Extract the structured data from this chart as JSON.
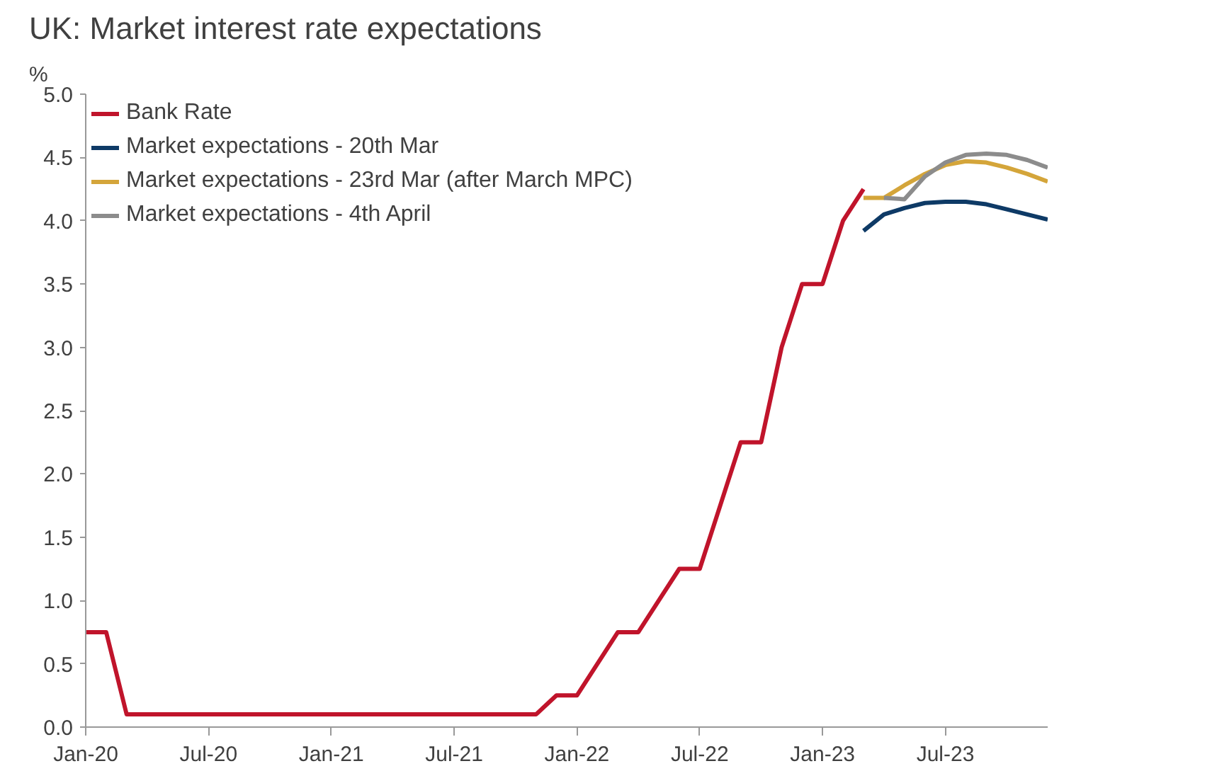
{
  "chart_data": {
    "type": "line",
    "title": "UK: Market interest rate expectations",
    "ylabel": "%",
    "xlim": [
      "2020-01",
      "2023-12"
    ],
    "ylim": [
      0,
      5
    ],
    "xticks": [
      {
        "value": "2020-01",
        "label": "Jan-20"
      },
      {
        "value": "2020-07",
        "label": "Jul-20"
      },
      {
        "value": "2021-01",
        "label": "Jan-21"
      },
      {
        "value": "2021-07",
        "label": "Jul-21"
      },
      {
        "value": "2022-01",
        "label": "Jan-22"
      },
      {
        "value": "2022-07",
        "label": "Jul-22"
      },
      {
        "value": "2023-01",
        "label": "Jan-23"
      },
      {
        "value": "2023-07",
        "label": "Jul-23"
      }
    ],
    "yticks": [
      {
        "value": 0,
        "label": "0.0"
      },
      {
        "value": 0.5,
        "label": "0.5"
      },
      {
        "value": 1,
        "label": "1.0"
      },
      {
        "value": 1.5,
        "label": "1.5"
      },
      {
        "value": 2,
        "label": "2.0"
      },
      {
        "value": 2.5,
        "label": "2.5"
      },
      {
        "value": 3,
        "label": "3.0"
      },
      {
        "value": 3.5,
        "label": "3.5"
      },
      {
        "value": 4,
        "label": "4.0"
      },
      {
        "value": 4.5,
        "label": "4.5"
      },
      {
        "value": 5,
        "label": "5.0"
      }
    ],
    "grid": false,
    "legend": "top left",
    "series": [
      {
        "name": "Bank Rate",
        "color": "#c0142b",
        "x": [
          "2020-01",
          "2020-02",
          "2020-03",
          "2021-11",
          "2021-12",
          "2022-01",
          "2022-02",
          "2022-03",
          "2022-04",
          "2022-05",
          "2022-06",
          "2022-07",
          "2022-08",
          "2022-09",
          "2022-10",
          "2022-11",
          "2022-12",
          "2023-01",
          "2023-02",
          "2023-03"
        ],
        "values": [
          0.75,
          0.75,
          0.1,
          0.1,
          0.25,
          0.25,
          0.5,
          0.75,
          0.75,
          1.0,
          1.25,
          1.25,
          1.75,
          2.25,
          2.25,
          3.0,
          3.5,
          3.5,
          4.0,
          4.25
        ]
      },
      {
        "name": "Market expectations - 20th Mar",
        "color": "#0e3a66",
        "x": [
          "2023-03",
          "2023-04",
          "2023-05",
          "2023-06",
          "2023-07",
          "2023-08",
          "2023-09",
          "2023-10",
          "2023-11",
          "2023-12"
        ],
        "values": [
          3.92,
          4.05,
          4.1,
          4.14,
          4.15,
          4.15,
          4.13,
          4.09,
          4.05,
          4.01
        ]
      },
      {
        "name": "Market expectations - 23rd Mar (after March MPC)",
        "color": "#d4a53a",
        "x": [
          "2023-03",
          "2023-04",
          "2023-05",
          "2023-06",
          "2023-07",
          "2023-08",
          "2023-09",
          "2023-10",
          "2023-11",
          "2023-12"
        ],
        "values": [
          4.18,
          4.18,
          4.28,
          4.37,
          4.44,
          4.47,
          4.46,
          4.42,
          4.37,
          4.31
        ]
      },
      {
        "name": "Market expectations - 4th April",
        "color": "#8c8c8c",
        "x": [
          "2023-04",
          "2023-05",
          "2023-06",
          "2023-07",
          "2023-08",
          "2023-09",
          "2023-10",
          "2023-11",
          "2023-12"
        ],
        "values": [
          4.18,
          4.17,
          4.35,
          4.46,
          4.52,
          4.53,
          4.52,
          4.48,
          4.42
        ]
      }
    ]
  }
}
